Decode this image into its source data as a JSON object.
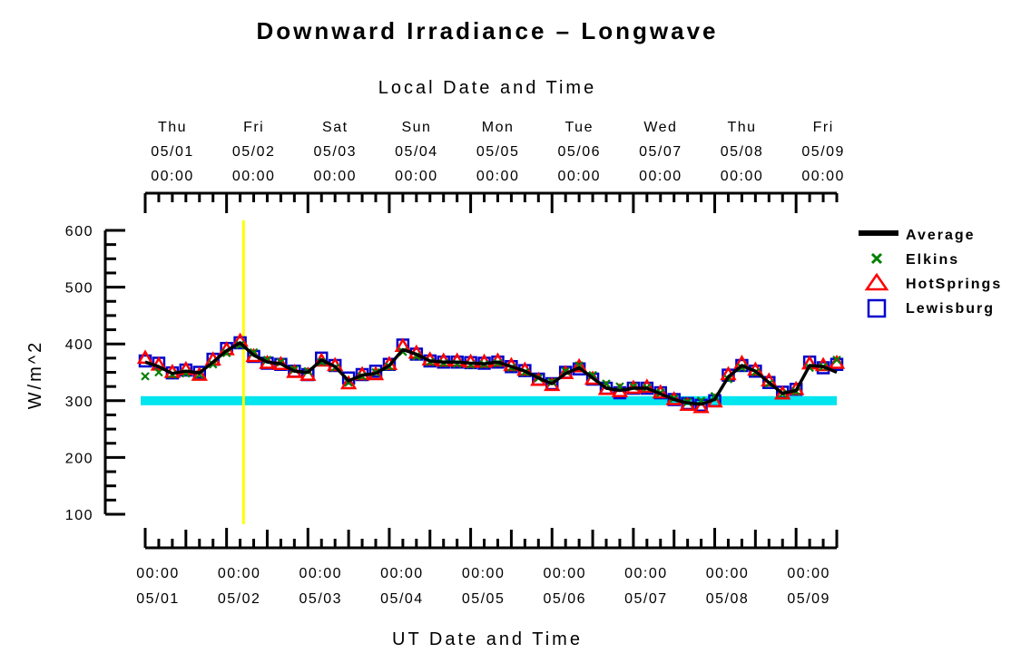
{
  "chart_data": {
    "type": "line",
    "title": "Downward Irradiance – Longwave",
    "top_axis_label": "Local Date and Time",
    "xlabel": "UT Date and Time",
    "ylabel": "W/m^2",
    "ylim": [
      100,
      600
    ],
    "y_ticks": [
      100,
      200,
      300,
      400,
      500,
      600
    ],
    "xlim": [
      "2008-05-01 00:00",
      "2008-05-09 12:00"
    ],
    "local_ticks": [
      {
        "day": "Thu",
        "date": "05/01",
        "time": "00:00"
      },
      {
        "day": "Fri",
        "date": "05/02",
        "time": "00:00"
      },
      {
        "day": "Sat",
        "date": "05/03",
        "time": "00:00"
      },
      {
        "day": "Sun",
        "date": "05/04",
        "time": "00:00"
      },
      {
        "day": "Mon",
        "date": "05/05",
        "time": "00:00"
      },
      {
        "day": "Tue",
        "date": "05/06",
        "time": "00:00"
      },
      {
        "day": "Wed",
        "date": "05/07",
        "time": "00:00"
      },
      {
        "day": "Thu",
        "date": "05/08",
        "time": "00:00"
      },
      {
        "day": "Fri",
        "date": "05/09",
        "time": "00:00"
      }
    ],
    "ut_ticks": [
      {
        "time": "00:00",
        "date": "05/01"
      },
      {
        "time": "00:00",
        "date": "05/02"
      },
      {
        "time": "00:00",
        "date": "05/03"
      },
      {
        "time": "00:00",
        "date": "05/04"
      },
      {
        "time": "00:00",
        "date": "05/05"
      },
      {
        "time": "00:00",
        "date": "05/06"
      },
      {
        "time": "00:00",
        "date": "05/07"
      },
      {
        "time": "00:00",
        "date": "05/08"
      },
      {
        "time": "00:00",
        "date": "05/09"
      }
    ],
    "reference_band": {
      "y_min": 292,
      "y_max": 308,
      "color": "#00E5EE"
    },
    "marker_line": {
      "x": "2008-05-02 05:00",
      "color": "#FFFF00"
    },
    "x": [
      "2008-05-01 00:00",
      "2008-05-01 04:00",
      "2008-05-01 08:00",
      "2008-05-01 12:00",
      "2008-05-01 16:00",
      "2008-05-01 20:00",
      "2008-05-02 00:00",
      "2008-05-02 04:00",
      "2008-05-02 08:00",
      "2008-05-02 12:00",
      "2008-05-02 16:00",
      "2008-05-02 20:00",
      "2008-05-03 00:00",
      "2008-05-03 04:00",
      "2008-05-03 08:00",
      "2008-05-03 12:00",
      "2008-05-03 16:00",
      "2008-05-03 20:00",
      "2008-05-04 00:00",
      "2008-05-04 04:00",
      "2008-05-04 08:00",
      "2008-05-04 12:00",
      "2008-05-04 16:00",
      "2008-05-04 20:00",
      "2008-05-05 00:00",
      "2008-05-05 04:00",
      "2008-05-05 08:00",
      "2008-05-05 12:00",
      "2008-05-05 16:00",
      "2008-05-05 20:00",
      "2008-05-06 00:00",
      "2008-05-06 04:00",
      "2008-05-06 08:00",
      "2008-05-06 12:00",
      "2008-05-06 16:00",
      "2008-05-06 20:00",
      "2008-05-07 00:00",
      "2008-05-07 04:00",
      "2008-05-07 08:00",
      "2008-05-07 12:00",
      "2008-05-07 16:00",
      "2008-05-07 20:00",
      "2008-05-08 00:00",
      "2008-05-08 04:00",
      "2008-05-08 08:00",
      "2008-05-08 12:00",
      "2008-05-08 16:00",
      "2008-05-08 20:00",
      "2008-05-09 00:00",
      "2008-05-09 04:00",
      "2008-05-09 08:00",
      "2008-05-09 12:00"
    ],
    "series": [
      {
        "name": "Average",
        "color": "#000000",
        "marker": "line",
        "values": [
          368,
          360,
          348,
          352,
          349,
          368,
          388,
          402,
          380,
          368,
          365,
          352,
          350,
          372,
          360,
          335,
          345,
          348,
          362,
          390,
          382,
          370,
          368,
          368,
          366,
          365,
          368,
          360,
          352,
          340,
          330,
          348,
          358,
          340,
          322,
          318,
          322,
          322,
          312,
          302,
          296,
          294,
          302,
          342,
          362,
          352,
          332,
          313,
          318,
          362,
          360,
          350
        ]
      },
      {
        "name": "Elkins",
        "color": "#008000",
        "marker": "x",
        "values": [
          343,
          350,
          346,
          348,
          346,
          364,
          384,
          398,
          385,
          372,
          368,
          355,
          352,
          368,
          358,
          332,
          343,
          350,
          360,
          386,
          378,
          368,
          366,
          365,
          363,
          364,
          366,
          358,
          350,
          340,
          333,
          352,
          362,
          345,
          330,
          325,
          325,
          323,
          314,
          304,
          298,
          300,
          308,
          338,
          358,
          350,
          330,
          312,
          316,
          358,
          360,
          372
        ]
      },
      {
        "name": "HotSprings",
        "color": "#FF0000",
        "marker": "triangle",
        "values": [
          375,
          363,
          350,
          355,
          345,
          372,
          390,
          405,
          378,
          366,
          364,
          350,
          345,
          370,
          362,
          330,
          346,
          346,
          364,
          396,
          384,
          372,
          370,
          370,
          368,
          368,
          370,
          362,
          354,
          336,
          327,
          348,
          360,
          338,
          320,
          316,
          322,
          324,
          314,
          302,
          292,
          288,
          298,
          346,
          366,
          354,
          335,
          312,
          320,
          365,
          362,
          366
        ]
      },
      {
        "name": "Lewisburg",
        "color": "#0000CC",
        "marker": "square",
        "values": [
          370,
          366,
          349,
          354,
          350,
          373,
          392,
          402,
          378,
          366,
          364,
          352,
          346,
          375,
          362,
          340,
          346,
          352,
          364,
          398,
          382,
          370,
          368,
          368,
          367,
          366,
          368,
          360,
          353,
          338,
          330,
          350,
          356,
          338,
          322,
          314,
          322,
          322,
          314,
          302,
          295,
          292,
          300,
          345,
          362,
          352,
          332,
          315,
          320,
          368,
          358,
          364
        ]
      }
    ],
    "legend": {
      "position": "right"
    }
  }
}
